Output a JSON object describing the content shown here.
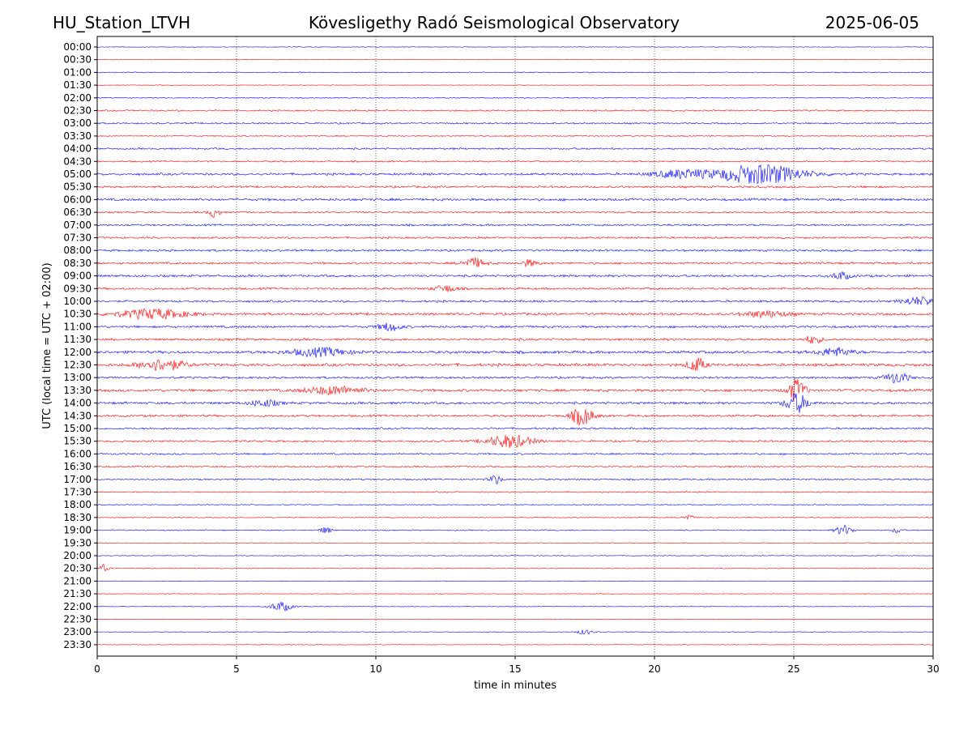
{
  "header": {
    "station": "HU_Station_LTVH",
    "observatory": "Kövesligethy Radó Seismological Observatory",
    "date": "2025-06-05"
  },
  "colors": {
    "even_rows": "#0000ff",
    "odd_rows": "#ff0000",
    "axes": "#000000",
    "background": "#ffffff"
  },
  "chart_data": {
    "type": "line",
    "title": "Kövesligethy Radó Seismological Observatory",
    "xlabel": "time in minutes",
    "ylabel": "UTC (local time = UTC + 02:00)",
    "xlim": [
      0,
      30
    ],
    "x_ticks": [
      "0",
      "5",
      "10",
      "15",
      "20",
      "25",
      "30"
    ],
    "x_tick_values": [
      0,
      5,
      10,
      15,
      20,
      25,
      30
    ],
    "vertical_gridlines": true,
    "row_labels": [
      "00:00",
      "00:30",
      "01:00",
      "01:30",
      "02:00",
      "02:30",
      "03:00",
      "03:30",
      "04:00",
      "04:30",
      "05:00",
      "05:30",
      "06:00",
      "06:30",
      "07:00",
      "07:30",
      "08:00",
      "08:30",
      "09:00",
      "09:30",
      "10:00",
      "10:30",
      "11:00",
      "11:30",
      "12:00",
      "12:30",
      "13:00",
      "13:30",
      "14:00",
      "14:30",
      "15:00",
      "15:30",
      "16:00",
      "16:30",
      "17:00",
      "17:30",
      "18:00",
      "18:30",
      "19:00",
      "19:30",
      "20:00",
      "20:30",
      "21:00",
      "21:30",
      "22:00",
      "22:30",
      "23:00",
      "23:30"
    ],
    "row_noise_amplitude": [
      0.3,
      0.2,
      0.5,
      0.3,
      0.5,
      0.8,
      0.8,
      0.6,
      0.9,
      0.8,
      1.2,
      1.1,
      1.3,
      0.9,
      1.0,
      1.0,
      1.1,
      1.1,
      1.2,
      1.1,
      1.1,
      1.3,
      1.2,
      1.2,
      1.4,
      1.5,
      1.1,
      1.4,
      1.3,
      1.2,
      1.0,
      1.0,
      0.9,
      0.8,
      0.8,
      0.6,
      0.5,
      0.5,
      0.6,
      0.4,
      0.4,
      0.4,
      0.3,
      0.3,
      0.3,
      0.3,
      0.3,
      0.3
    ],
    "events": [
      {
        "row": 10,
        "minute": 23.8,
        "amplitude": 12,
        "width": 1.5
      },
      {
        "row": 10,
        "minute": 21.0,
        "amplitude": 5,
        "width": 1.0
      },
      {
        "row": 13,
        "minute": 4.2,
        "amplitude": 6,
        "width": 0.2
      },
      {
        "row": 17,
        "minute": 13.5,
        "amplitude": 6,
        "width": 0.4
      },
      {
        "row": 17,
        "minute": 15.5,
        "amplitude": 4,
        "width": 0.3
      },
      {
        "row": 19,
        "minute": 12.5,
        "amplitude": 4,
        "width": 0.4
      },
      {
        "row": 18,
        "minute": 26.7,
        "amplitude": 5,
        "width": 0.3
      },
      {
        "row": 21,
        "minute": 2.0,
        "amplitude": 6,
        "width": 1.2
      },
      {
        "row": 21,
        "minute": 24.0,
        "amplitude": 4,
        "width": 0.8
      },
      {
        "row": 20,
        "minute": 29.5,
        "amplitude": 5,
        "width": 0.6
      },
      {
        "row": 22,
        "minute": 10.5,
        "amplitude": 5,
        "width": 0.4
      },
      {
        "row": 23,
        "minute": 25.7,
        "amplitude": 5,
        "width": 0.3
      },
      {
        "row": 24,
        "minute": 8.0,
        "amplitude": 5,
        "width": 1.0
      },
      {
        "row": 24,
        "minute": 26.5,
        "amplitude": 5,
        "width": 0.6
      },
      {
        "row": 25,
        "minute": 2.3,
        "amplitude": 7,
        "width": 0.8
      },
      {
        "row": 25,
        "minute": 21.5,
        "amplitude": 9,
        "width": 0.3
      },
      {
        "row": 26,
        "minute": 28.7,
        "amplitude": 7,
        "width": 0.4
      },
      {
        "row": 27,
        "minute": 25.1,
        "amplitude": 14,
        "width": 0.3
      },
      {
        "row": 27,
        "minute": 8.5,
        "amplitude": 5,
        "width": 1.0
      },
      {
        "row": 28,
        "minute": 25.1,
        "amplitude": 12,
        "width": 0.4
      },
      {
        "row": 28,
        "minute": 6.0,
        "amplitude": 4,
        "width": 0.5
      },
      {
        "row": 29,
        "minute": 17.4,
        "amplitude": 11,
        "width": 0.4
      },
      {
        "row": 31,
        "minute": 14.8,
        "amplitude": 8,
        "width": 0.8
      },
      {
        "row": 34,
        "minute": 14.3,
        "amplitude": 6,
        "width": 0.2
      },
      {
        "row": 37,
        "minute": 21.2,
        "amplitude": 4,
        "width": 0.2
      },
      {
        "row": 38,
        "minute": 8.2,
        "amplitude": 4,
        "width": 0.2
      },
      {
        "row": 38,
        "minute": 26.8,
        "amplitude": 6,
        "width": 0.3
      },
      {
        "row": 38,
        "minute": 28.7,
        "amplitude": 4,
        "width": 0.15
      },
      {
        "row": 41,
        "minute": 0.25,
        "amplitude": 5,
        "width": 0.15
      },
      {
        "row": 44,
        "minute": 6.6,
        "amplitude": 6,
        "width": 0.4
      },
      {
        "row": 46,
        "minute": 17.5,
        "amplitude": 3,
        "width": 0.3
      }
    ]
  }
}
